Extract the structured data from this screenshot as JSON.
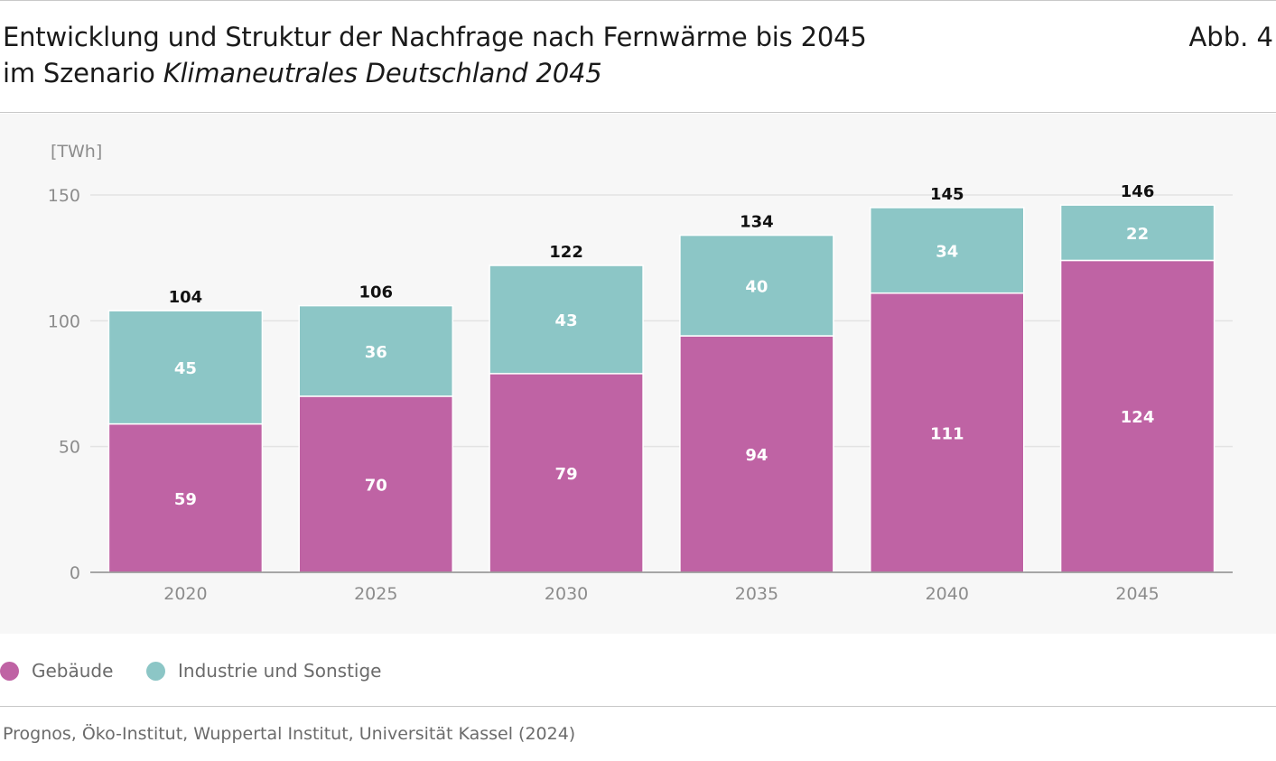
{
  "header": {
    "title_line1": "Entwicklung und Struktur der Nachfrage nach Fernwärme bis 2045",
    "title_line2_prefix": "im Szenario ",
    "title_line2_italic": "Klimaneutrales Deutschland 2045",
    "figure_label": "Abb. 4"
  },
  "footer": {
    "source": "Prognos, Öko-Institut, Wuppertal Institut, Universität Kassel (2024)"
  },
  "colors": {
    "gebaeude": "#bf63a4",
    "industrie": "#8cc6c6",
    "grid": "#e3e3e3",
    "axis": "#8c8c8c"
  },
  "chart_data": {
    "type": "bar",
    "stacked": true,
    "title": "Entwicklung und Struktur der Nachfrage nach Fernwärme bis 2045 im Szenario Klimaneutrales Deutschland 2045",
    "ylabel": "[TWh]",
    "xlabel": "",
    "ylim": [
      0,
      150
    ],
    "yticks": [
      0,
      50,
      100,
      150
    ],
    "grid": true,
    "categories": [
      "2020",
      "2025",
      "2030",
      "2035",
      "2040",
      "2045"
    ],
    "series": [
      {
        "name": "Gebäude",
        "key": "gebaeude",
        "values": [
          59,
          70,
          79,
          94,
          111,
          124
        ]
      },
      {
        "name": "Industrie und Sonstige",
        "key": "industrie",
        "values": [
          45,
          36,
          43,
          40,
          34,
          22
        ]
      }
    ],
    "totals": [
      104,
      106,
      122,
      134,
      145,
      146
    ]
  }
}
